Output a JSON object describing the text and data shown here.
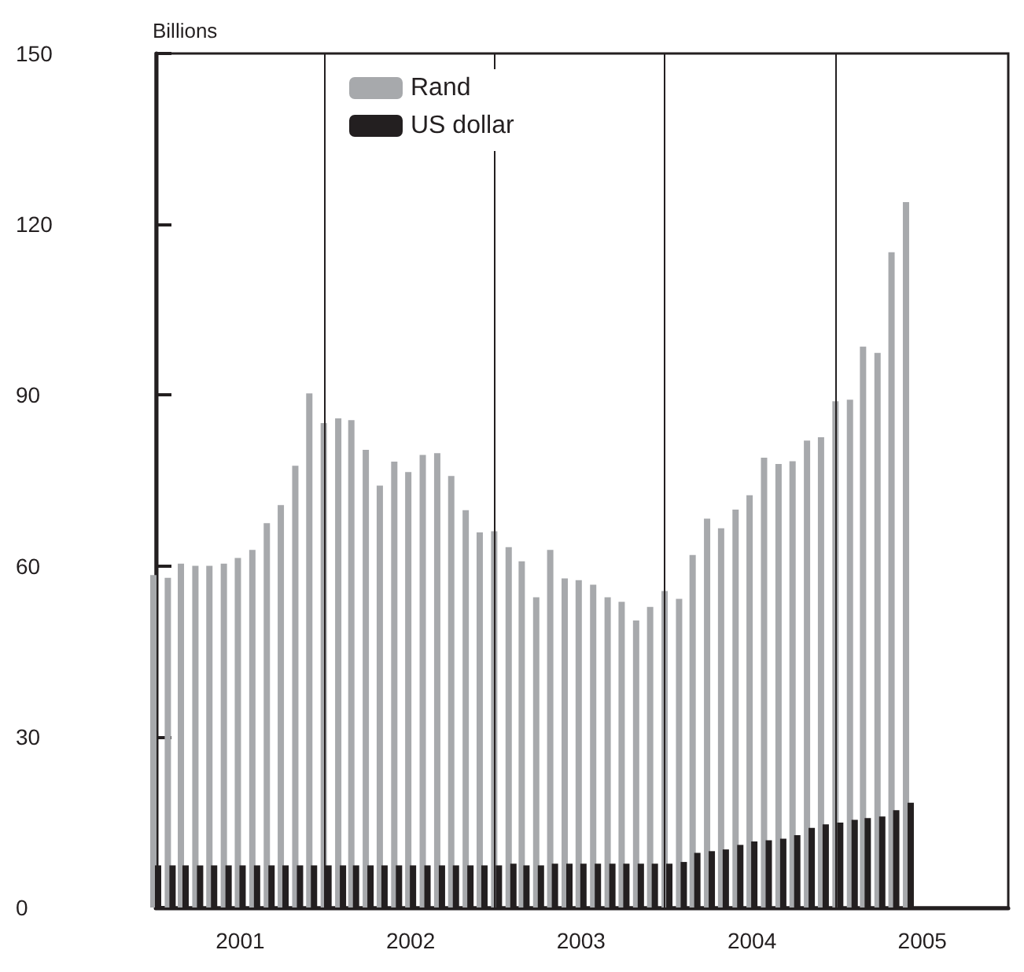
{
  "chart_data": {
    "type": "bar",
    "ylabel": "Billions",
    "x": [
      "2001-01",
      "2001-02",
      "2001-03",
      "2001-04",
      "2001-05",
      "2001-06",
      "2001-07",
      "2001-08",
      "2001-09",
      "2001-10",
      "2001-11",
      "2001-12",
      "2002-01",
      "2002-02",
      "2002-03",
      "2002-04",
      "2002-05",
      "2002-06",
      "2002-07",
      "2002-08",
      "2002-09",
      "2002-10",
      "2002-11",
      "2002-12",
      "2003-01",
      "2003-02",
      "2003-03",
      "2003-04",
      "2003-05",
      "2003-06",
      "2003-07",
      "2003-08",
      "2003-09",
      "2003-10",
      "2003-11",
      "2003-12",
      "2004-01",
      "2004-02",
      "2004-03",
      "2004-04",
      "2004-05",
      "2004-06",
      "2004-07",
      "2004-08",
      "2004-09",
      "2004-10",
      "2004-11",
      "2004-12",
      "2005-01",
      "2005-02",
      "2005-03",
      "2005-04",
      "2005-05",
      "2005-06"
    ],
    "series": [
      {
        "name": "Rand",
        "color": "#a7a9ac",
        "values": [
          58.4,
          57.9,
          60.4,
          60.0,
          60.0,
          60.4,
          61.4,
          62.8,
          67.5,
          70.7,
          77.6,
          90.3,
          85.1,
          85.9,
          85.6,
          80.4,
          74.1,
          78.3,
          76.5,
          79.5,
          79.8,
          75.8,
          69.8,
          65.9,
          66.1,
          63.3,
          60.8,
          54.5,
          62.8,
          57.8,
          57.5,
          56.7,
          54.5,
          53.7,
          50.4,
          52.8,
          55.6,
          54.2,
          61.9,
          68.3,
          66.6,
          69.9,
          72.4,
          79.0,
          77.9,
          78.4,
          82.0,
          82.6,
          88.9,
          89.2,
          98.5,
          97.4,
          115.1,
          123.9
        ]
      },
      {
        "name": "US dollar",
        "color": "#231f20",
        "values": [
          7.4,
          7.4,
          7.4,
          7.4,
          7.4,
          7.4,
          7.4,
          7.4,
          7.4,
          7.4,
          7.4,
          7.4,
          7.4,
          7.4,
          7.4,
          7.4,
          7.4,
          7.4,
          7.4,
          7.4,
          7.4,
          7.4,
          7.4,
          7.4,
          7.4,
          7.7,
          7.4,
          7.4,
          7.7,
          7.7,
          7.7,
          7.7,
          7.7,
          7.7,
          7.7,
          7.7,
          7.7,
          8.0,
          9.6,
          9.9,
          10.2,
          11.0,
          11.6,
          11.8,
          12.1,
          12.7,
          14.0,
          14.6,
          14.9,
          15.4,
          15.7,
          16.0,
          17.1,
          18.4
        ]
      }
    ],
    "xlim": [
      "2001-01",
      "2006-01"
    ],
    "xticks": [
      {
        "value": "2001-07",
        "label": "2001"
      },
      {
        "value": "2002-01",
        "label": null
      },
      {
        "value": "2002-07",
        "label": "2002"
      },
      {
        "value": "2003-01",
        "label": null
      },
      {
        "value": "2003-07",
        "label": "2003"
      },
      {
        "value": "2004-01",
        "label": null
      },
      {
        "value": "2004-07",
        "label": "2004"
      },
      {
        "value": "2005-01",
        "label": null
      },
      {
        "value": "2005-07",
        "label": "2005"
      }
    ],
    "ylim": [
      0,
      150
    ],
    "yticks": [
      0,
      30,
      60,
      90,
      120,
      150
    ],
    "grid": "x",
    "legend": "top left"
  }
}
